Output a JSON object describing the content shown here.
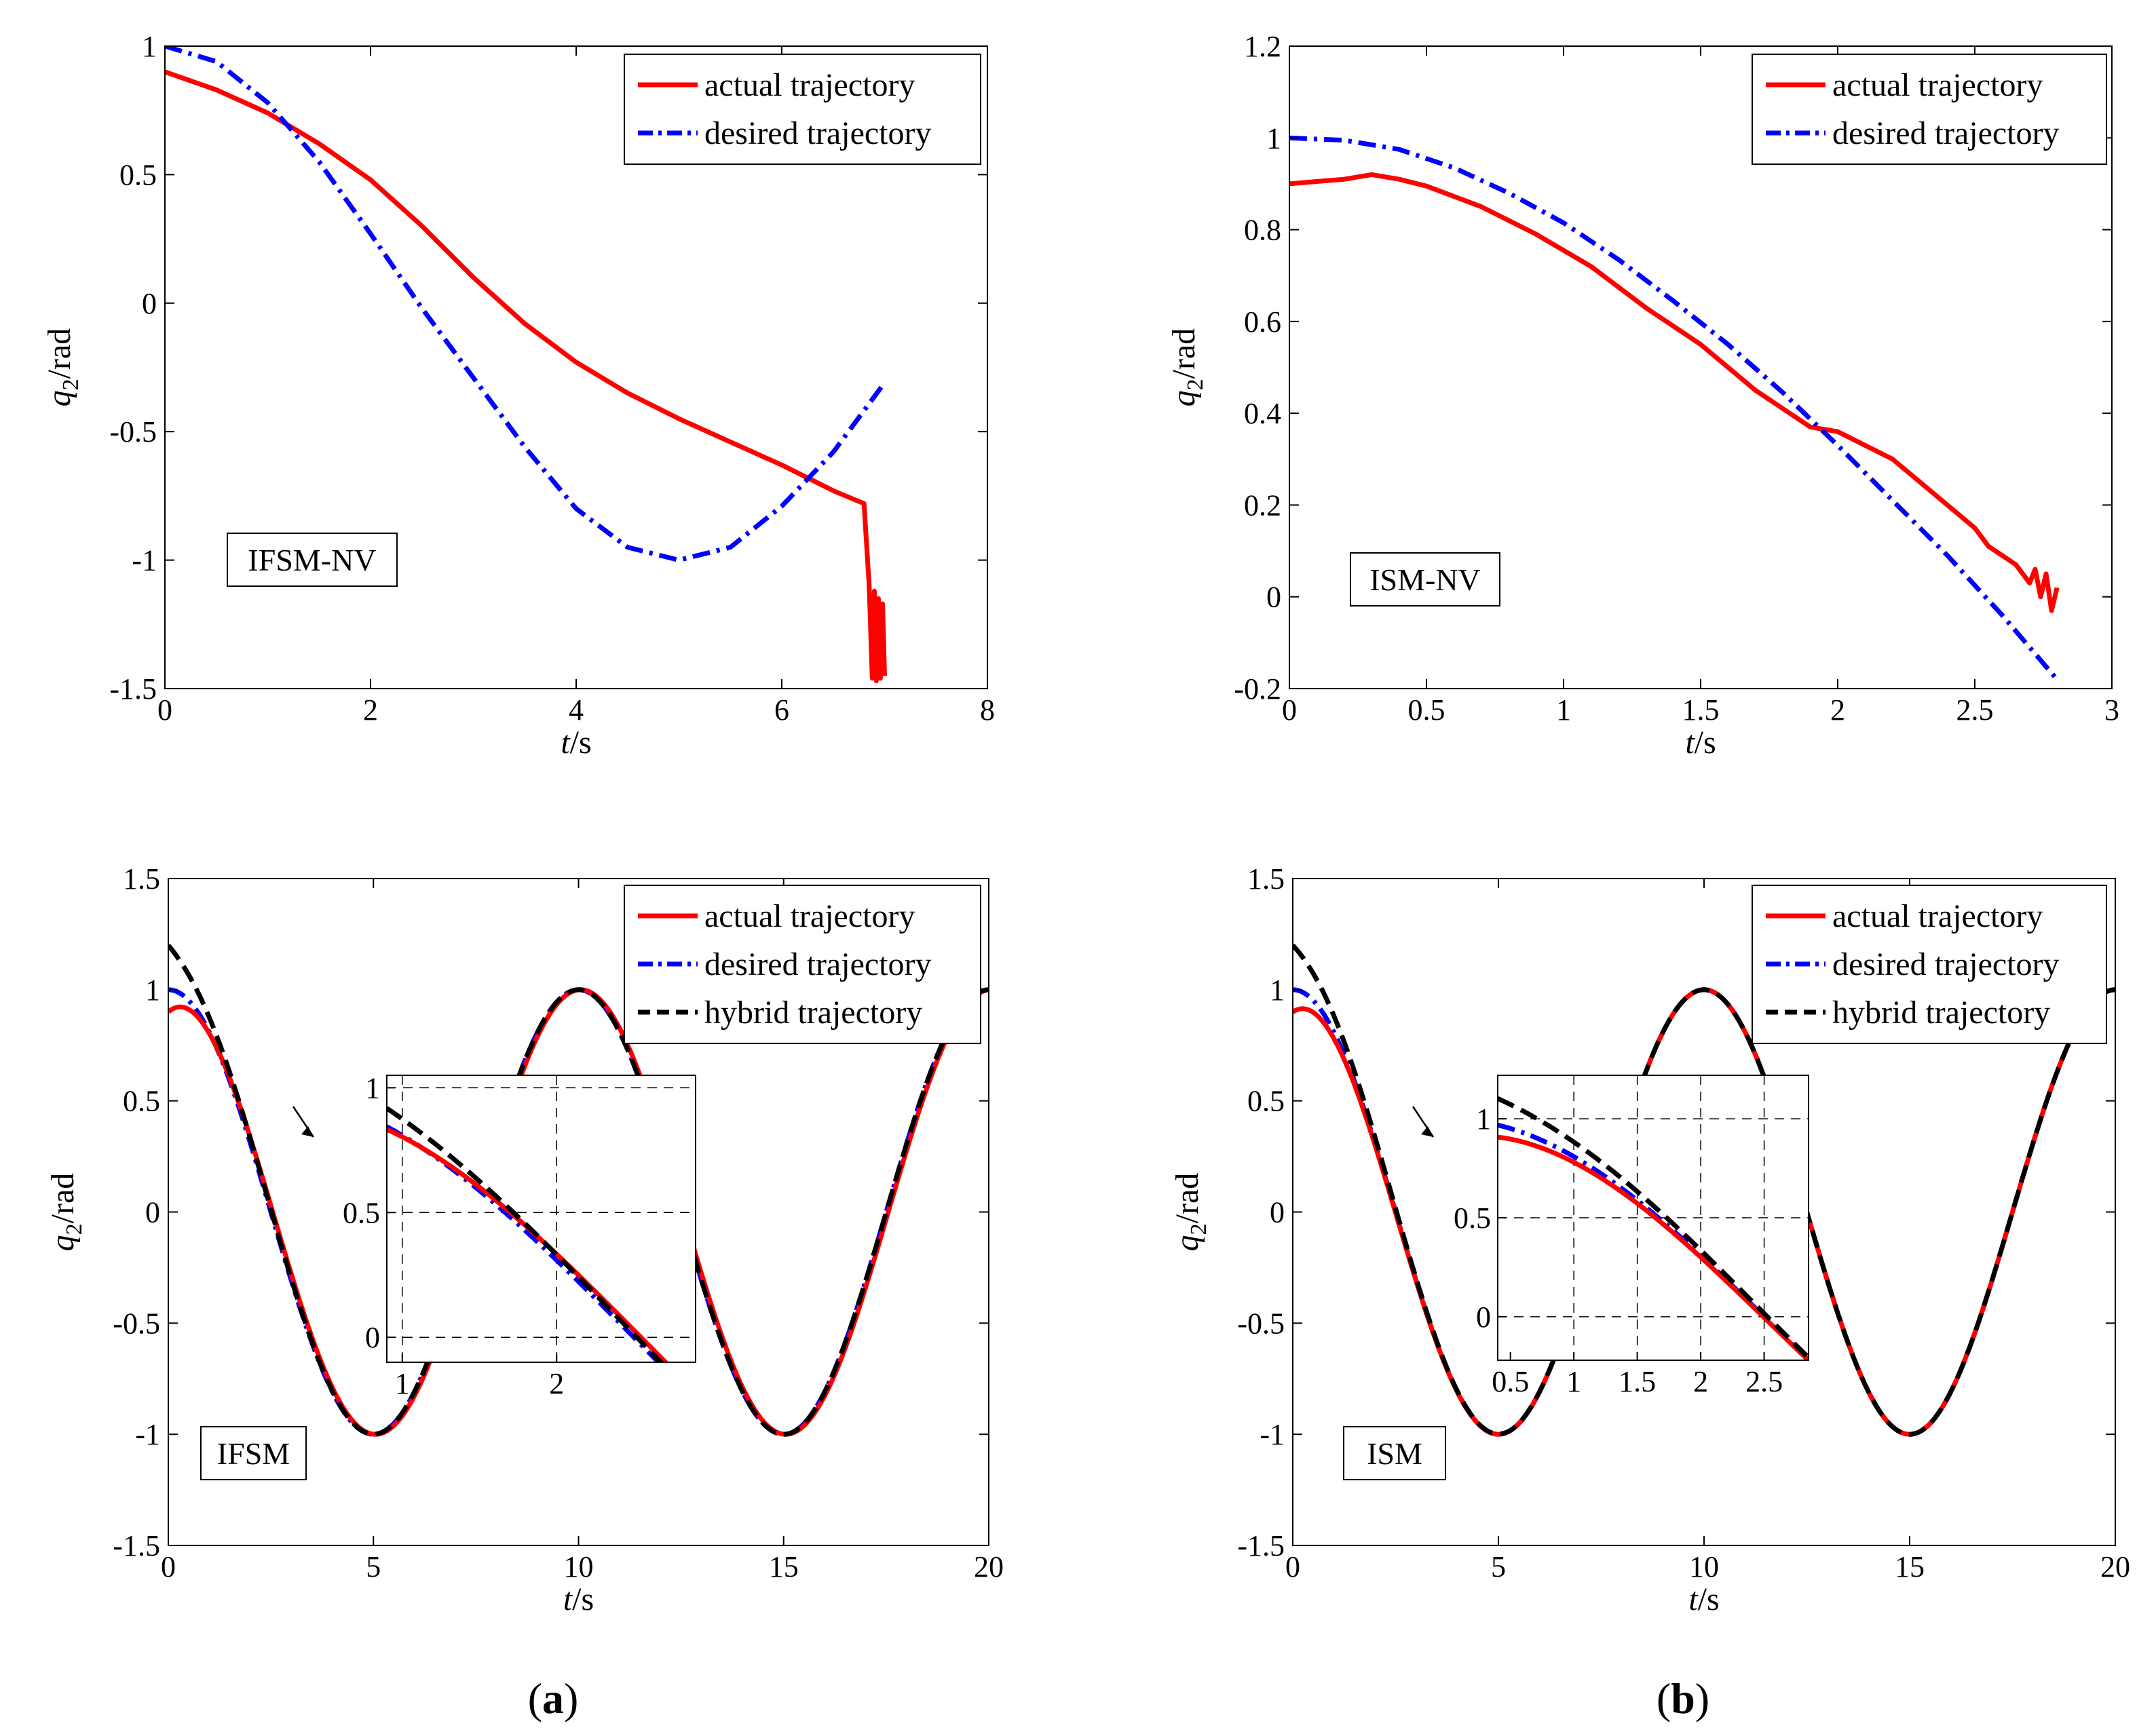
{
  "figure": {
    "panel_labels": [
      {
        "pre": "(",
        "letter": "a",
        "post": ")"
      },
      {
        "pre": "(",
        "letter": "b",
        "post": ")"
      }
    ]
  },
  "chart_data": [
    {
      "id": "p1",
      "type": "line",
      "xlabel": {
        "italic": "t",
        "rest": "/s"
      },
      "ylabel": {
        "main": "q",
        "sub": "2",
        "rest": "/rad"
      },
      "xlim": [
        0,
        8
      ],
      "ylim": [
        -1.5,
        1
      ],
      "xticks": [
        0,
        2,
        4,
        6,
        8
      ],
      "xtick_labels": [
        "0",
        "2",
        "4",
        "6",
        "8"
      ],
      "yticks": [
        -1.5,
        -1,
        -0.5,
        0,
        0.5,
        1
      ],
      "ytick_labels": [
        "-1.5",
        "-1",
        "-0.5",
        "0",
        "0.5",
        "1"
      ],
      "method_label": "IFSM-NV",
      "legend": [
        {
          "label": "actual trajectory",
          "color": "#ff0000",
          "dash": "solid"
        },
        {
          "label": "desired trajectory",
          "color": "#0000ff",
          "dash": "dashdot"
        }
      ],
      "series": [
        {
          "name": "actual trajectory",
          "color": "#ff0000",
          "dash": "solid",
          "x": [
            0,
            0.5,
            1,
            1.5,
            2,
            2.5,
            3,
            3.5,
            4,
            4.5,
            5,
            5.5,
            6,
            6.5,
            6.8,
            6.85,
            6.88,
            6.9,
            6.92,
            6.94,
            6.96,
            6.98,
            7.0
          ],
          "y": [
            0.9,
            0.83,
            0.74,
            0.62,
            0.48,
            0.3,
            0.1,
            -0.08,
            -0.23,
            -0.35,
            -0.45,
            -0.54,
            -0.63,
            -0.73,
            -0.78,
            -1.1,
            -1.46,
            -1.12,
            -1.47,
            -1.15,
            -1.46,
            -1.17,
            -1.45
          ]
        },
        {
          "name": "desired trajectory",
          "color": "#0000ff",
          "dash": "dashdot",
          "x": [
            0,
            0.5,
            1,
            1.5,
            2,
            2.5,
            3,
            3.5,
            4,
            4.5,
            5,
            5.5,
            6,
            6.5,
            7.0
          ],
          "y": [
            1.0,
            0.94,
            0.78,
            0.55,
            0.27,
            -0.02,
            -0.29,
            -0.56,
            -0.8,
            -0.95,
            -1.0,
            -0.95,
            -0.79,
            -0.58,
            -0.31
          ]
        }
      ]
    },
    {
      "id": "p2",
      "type": "line",
      "xlabel": {
        "italic": "t",
        "rest": "/s"
      },
      "ylabel": {
        "main": "q",
        "sub": "2",
        "rest": "/rad"
      },
      "xlim": [
        0,
        3
      ],
      "ylim": [
        -0.2,
        1.2
      ],
      "xticks": [
        0,
        0.5,
        1,
        1.5,
        2,
        2.5,
        3
      ],
      "xtick_labels": [
        "0",
        "0.5",
        "1",
        "1.5",
        "2",
        "2.5",
        "3"
      ],
      "yticks": [
        -0.2,
        0,
        0.2,
        0.4,
        0.6,
        0.8,
        1,
        1.2
      ],
      "ytick_labels": [
        "-0.2",
        "0",
        "0.2",
        "0.4",
        "0.6",
        "0.8",
        "1",
        "1.2"
      ],
      "method_label": "ISM-NV",
      "legend": [
        {
          "label": "actual trajectory",
          "color": "#ff0000",
          "dash": "solid"
        },
        {
          "label": "desired trajectory",
          "color": "#0000ff",
          "dash": "dashdot"
        }
      ],
      "series": [
        {
          "name": "actual trajectory",
          "color": "#ff0000",
          "dash": "solid",
          "x": [
            0,
            0.1,
            0.2,
            0.3,
            0.4,
            0.5,
            0.7,
            0.9,
            1.1,
            1.3,
            1.5,
            1.7,
            1.8,
            1.9,
            2.0,
            2.1,
            2.2,
            2.3,
            2.4,
            2.5,
            2.55,
            2.6,
            2.65,
            2.7,
            2.72,
            2.74,
            2.76,
            2.78,
            2.8
          ],
          "y": [
            0.9,
            0.905,
            0.91,
            0.92,
            0.91,
            0.895,
            0.85,
            0.79,
            0.72,
            0.63,
            0.55,
            0.45,
            0.41,
            0.37,
            0.36,
            0.33,
            0.3,
            0.25,
            0.2,
            0.15,
            0.11,
            0.09,
            0.07,
            0.03,
            0.06,
            0.0,
            0.05,
            -0.03,
            0.02
          ]
        },
        {
          "name": "desired trajectory",
          "color": "#0000ff",
          "dash": "dashdot",
          "x": [
            0,
            0.2,
            0.4,
            0.6,
            0.8,
            1.0,
            1.2,
            1.4,
            1.6,
            1.8,
            2.0,
            2.2,
            2.4,
            2.6,
            2.8
          ],
          "y": [
            1.0,
            0.995,
            0.975,
            0.935,
            0.88,
            0.815,
            0.735,
            0.645,
            0.55,
            0.445,
            0.33,
            0.21,
            0.09,
            -0.04,
            -0.18
          ]
        }
      ]
    },
    {
      "id": "p3",
      "type": "line",
      "xlabel": {
        "italic": "t",
        "rest": "/s"
      },
      "ylabel": {
        "main": "q",
        "sub": "2",
        "rest": "/rad"
      },
      "xlim": [
        0,
        20
      ],
      "ylim": [
        -1.5,
        1.5
      ],
      "xticks": [
        0,
        5,
        10,
        15,
        20
      ],
      "xtick_labels": [
        "0",
        "5",
        "10",
        "15",
        "20"
      ],
      "yticks": [
        -1.5,
        -1,
        -0.5,
        0,
        0.5,
        1,
        1.5
      ],
      "ytick_labels": [
        "-1.5",
        "-1",
        "-0.5",
        "0",
        "0.5",
        "1",
        "1.5"
      ],
      "method_label": "IFSM",
      "legend": [
        {
          "label": "actual trajectory",
          "color": "#ff0000",
          "dash": "solid"
        },
        {
          "label": "desired trajectory",
          "color": "#0000ff",
          "dash": "dashdot"
        },
        {
          "label": "hybrid trajectory",
          "color": "#000000",
          "dash": "dashed"
        }
      ],
      "series": [
        {
          "name": "desired trajectory",
          "color": "#0000ff",
          "dash": "dashdot",
          "func": "cos",
          "period": 10,
          "x0": 0,
          "x1": 20
        },
        {
          "name": "actual trajectory",
          "color": "#ff0000",
          "dash": "solid",
          "func": "cos",
          "period": 10,
          "x0": 0,
          "x1": 20,
          "initial_y": 0.9,
          "decay": 0.7,
          "shift": 0.05
        },
        {
          "name": "hybrid trajectory",
          "color": "#000000",
          "dash": "dashed",
          "func": "cos",
          "period": 10,
          "x0": 0,
          "x1": 20,
          "initial_y": 1.2,
          "decay": 0.9
        }
      ],
      "inset": {
        "xlim": [
          0.9,
          2.9
        ],
        "ylim": [
          -0.1,
          1.05
        ],
        "xticks": [
          1,
          2
        ],
        "xtick_labels": [
          "1",
          "2"
        ],
        "yticks": [
          0,
          0.5,
          1
        ],
        "ytick_labels": [
          "0",
          "0.5",
          "1"
        ],
        "grid_x": [
          1,
          2
        ],
        "grid_y": [
          0,
          0.5,
          1
        ]
      }
    },
    {
      "id": "p4",
      "type": "line",
      "xlabel": {
        "italic": "t",
        "rest": "/s"
      },
      "ylabel": {
        "main": "q",
        "sub": "2",
        "rest": "/rad"
      },
      "xlim": [
        0,
        20
      ],
      "ylim": [
        -1.5,
        1.5
      ],
      "xticks": [
        0,
        5,
        10,
        15,
        20
      ],
      "xtick_labels": [
        "0",
        "5",
        "10",
        "15",
        "20"
      ],
      "yticks": [
        -1.5,
        -1,
        -0.5,
        0,
        0.5,
        1,
        1.5
      ],
      "ytick_labels": [
        "-1.5",
        "-1",
        "-0.5",
        "0",
        "0.5",
        "1",
        "1.5"
      ],
      "method_label": "ISM",
      "legend": [
        {
          "label": "actual trajectory",
          "color": "#ff0000",
          "dash": "solid"
        },
        {
          "label": "desired trajectory",
          "color": "#0000ff",
          "dash": "dashdot"
        },
        {
          "label": "hybrid trajectory",
          "color": "#000000",
          "dash": "dashed"
        }
      ],
      "series": [
        {
          "name": "desired trajectory",
          "color": "#0000ff",
          "dash": "dashdot",
          "func": "cos",
          "period": 10,
          "x0": 0,
          "x1": 20
        },
        {
          "name": "actual trajectory",
          "color": "#ff0000",
          "dash": "solid",
          "func": "cos",
          "period": 10,
          "x0": 0,
          "x1": 20,
          "initial_y": 0.9,
          "decay": 0.8
        },
        {
          "name": "hybrid trajectory",
          "color": "#000000",
          "dash": "dashed",
          "func": "cos",
          "period": 10,
          "x0": 0,
          "x1": 20,
          "initial_y": 1.2,
          "decay": 1.0
        }
      ],
      "inset": {
        "xlim": [
          0.4,
          2.85
        ],
        "ylim": [
          -0.22,
          1.22
        ],
        "xticks": [
          0.5,
          1,
          1.5,
          2,
          2.5
        ],
        "xtick_labels": [
          "0.5",
          "1",
          "1.5",
          "2",
          "2.5"
        ],
        "yticks": [
          0,
          0.5,
          1
        ],
        "ytick_labels": [
          "0",
          "0.5",
          "1"
        ],
        "grid_x": [
          1,
          1.5,
          2,
          2.5
        ],
        "grid_y": [
          0,
          0.5,
          1
        ]
      }
    }
  ]
}
